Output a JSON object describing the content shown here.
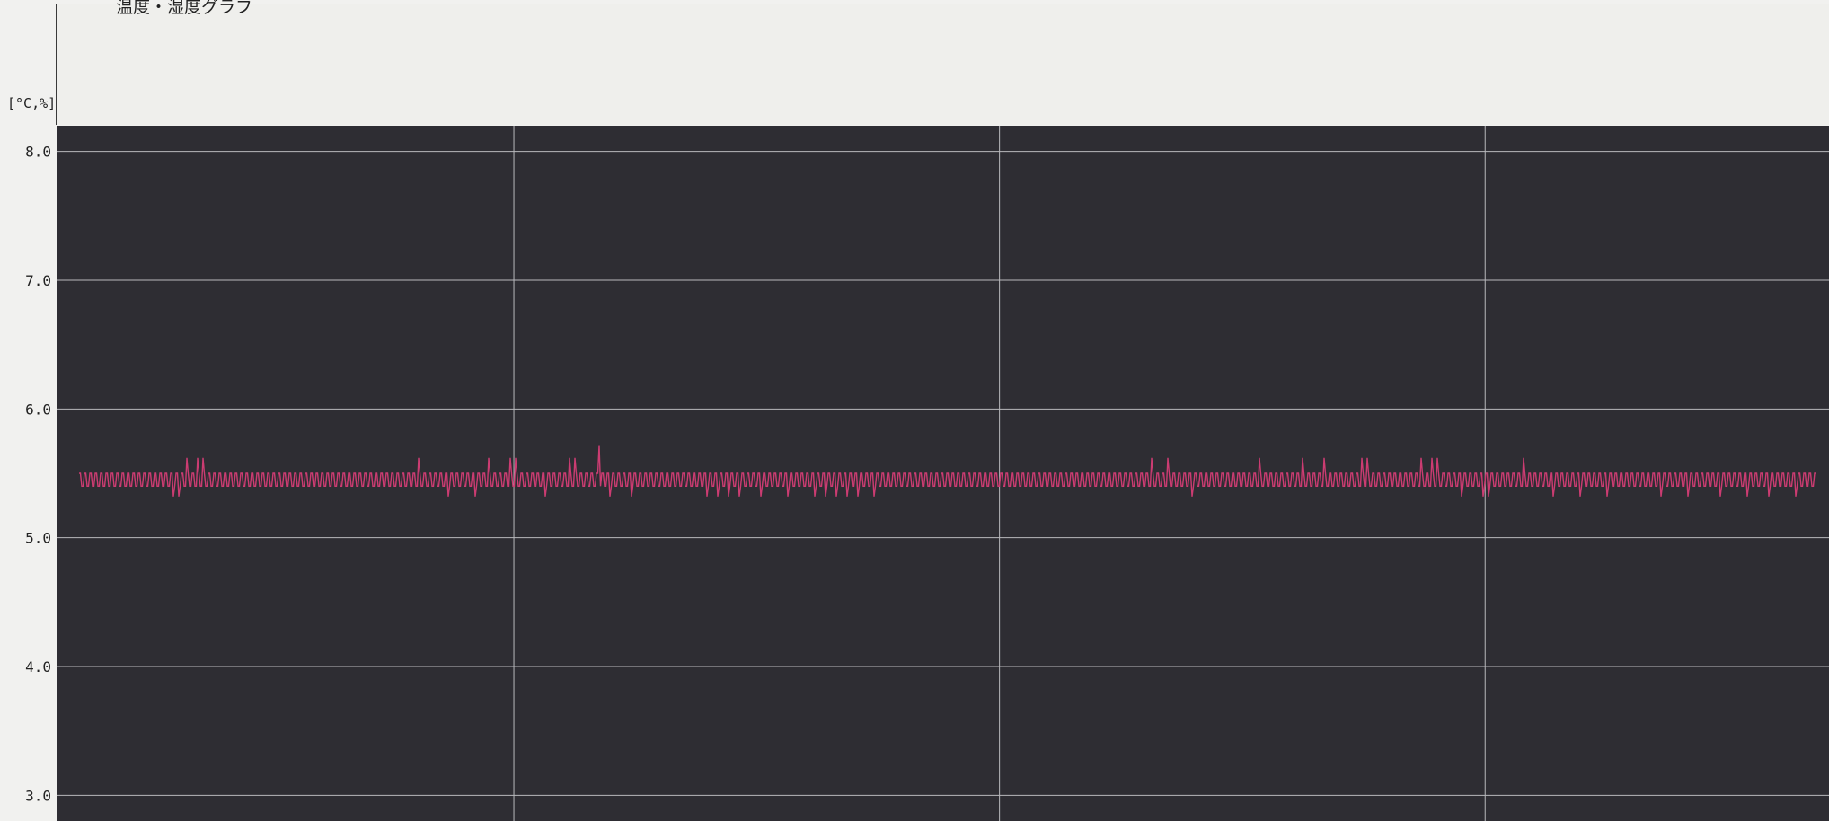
{
  "chart_data": {
    "type": "line",
    "title": "温度・湿度グラフ",
    "ylabel": "[°C,%]",
    "ylim": [
      2.8,
      8.2
    ],
    "yticks": [
      8.0,
      7.0,
      6.0,
      5.0,
      4.0,
      3.0
    ],
    "ytick_labels": [
      "8.0",
      "7.0",
      "6.0",
      "5.0",
      "4.0",
      "3.0"
    ],
    "grid": true,
    "plot_background": "#2e2d33",
    "grid_color": "#b9b9bd",
    "series": [
      {
        "color": "#cc3c72",
        "baseline_low": 5.4,
        "baseline_high": 5.5,
        "x_range": [
          0,
          1
        ],
        "upper_spikes": [
          0.062,
          0.068,
          0.072,
          0.122,
          0.195,
          0.2,
          0.236,
          0.24,
          0.244,
          0.248,
          0.252,
          0.282,
          0.286,
          0.296,
          0.526,
          0.618,
          0.622,
          0.626,
          0.632,
          0.675,
          0.68,
          0.684,
          0.704,
          0.712,
          0.716,
          0.734,
          0.738,
          0.742,
          0.746,
          0.756,
          0.762,
          0.773,
          0.778,
          0.782,
          0.786,
          0.79,
          0.818,
          0.831
        ],
        "spike_high": 5.62,
        "peak_spike": {
          "x": 0.3,
          "y": 5.72
        },
        "lower_spikes": [
          0.054,
          0.058,
          0.074,
          0.078,
          0.186,
          0.212,
          0.228,
          0.26,
          0.268,
          0.306,
          0.31,
          0.318,
          0.326,
          0.332,
          0.338,
          0.344,
          0.35,
          0.356,
          0.362,
          0.368,
          0.374,
          0.38,
          0.392,
          0.4,
          0.408,
          0.416,
          0.424,
          0.43,
          0.436,
          0.442,
          0.448,
          0.458,
          0.478,
          0.484,
          0.49,
          0.496,
          0.512,
          0.54,
          0.596,
          0.608,
          0.64,
          0.658,
          0.788,
          0.796,
          0.804,
          0.808,
          0.812,
          0.822,
          0.848,
          0.856,
          0.864,
          0.872,
          0.88,
          0.888,
          0.9,
          0.91,
          0.918,
          0.926,
          0.934,
          0.944,
          0.952,
          0.96,
          0.972,
          0.98,
          0.988,
          0.996
        ],
        "spike_low": 5.32
      }
    ]
  }
}
